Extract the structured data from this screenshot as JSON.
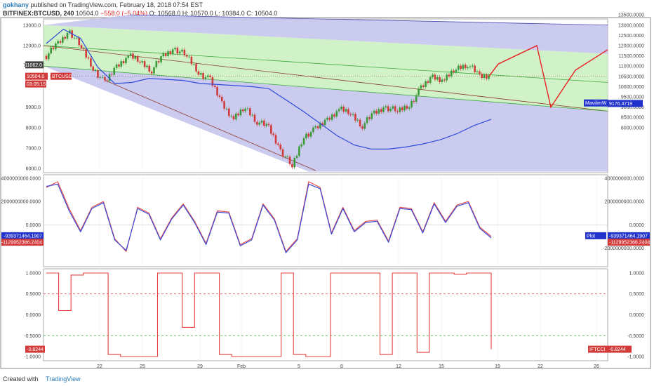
{
  "header": {
    "user": "gokhany",
    "published": "published on TradingView.com, February 18, 2018 07:54 EST",
    "symbol": "BITFINEX:BTCUSD, 240",
    "last": "10504.0",
    "change": "−558.0 (−5.04%)",
    "ohlc": "O: 10568.0  H: 10570.0  L: 10384.0  C: 10504.0"
  },
  "footer": {
    "created_with": "Created with",
    "brand": "TradingView"
  },
  "colors": {
    "green_band": "#c9efc0",
    "blue_band": "#c2c2ec",
    "candle_up": "#3a9a3a",
    "candle_down": "#d23a3a",
    "ma": "#2e4cd8",
    "pitch_median": "#8b3a2a",
    "projection": "#e82020",
    "osc_blue": "#3a4ad8",
    "osc_red": "#e85050",
    "ifti": "#e84040"
  },
  "chart_data": [
    {
      "type": "line",
      "panel": "price",
      "yticks_left": [
        "13000.0",
        "12000.0",
        "11062.0",
        "9000.0",
        "8000.0",
        "7000.0",
        "6000.0"
      ],
      "yticks_right": [
        "13500.0000",
        "13000.0000",
        "12500.0000",
        "12000.0000",
        "11500.0000",
        "11000.0000",
        "10500.0000",
        "10000.0000",
        "9500.0000",
        "9000.0000",
        "8500.0000",
        "8000.0000"
      ],
      "ylim": [
        5800,
        13300
      ],
      "price_tag": "11062.0",
      "last_tag": "10504.0",
      "last_label": "BTCUSD",
      "countdown": "03:05:15",
      "ma_label": "MavilimW",
      "ma_value": "9176.4719",
      "series": [
        {
          "values": [
            11500,
            12100,
            12700,
            11900,
            10900,
            10150,
            11000,
            11500,
            11250,
            10800,
            11500,
            11850,
            11500,
            10700,
            10300,
            9200,
            8400,
            9000,
            8300,
            8000,
            6900,
            6100,
            7600,
            7900,
            8400,
            8900,
            8700,
            8100,
            8700,
            9000,
            8800,
            9100,
            9900,
            10500,
            10300,
            10900,
            11100,
            10504
          ]
        },
        {
          "values": [
            12100,
            12800,
            12350,
            10950,
            10150,
            10200,
            10400,
            10350,
            10300,
            10150,
            10100,
            10050,
            10000,
            9900,
            9350,
            8800,
            8200,
            7600,
            7150,
            6950,
            6950,
            7050,
            7200,
            7400,
            7700,
            8100,
            8400
          ]
        },
        {
          "values": [
            10504,
            11100,
            12000,
            9000,
            10800,
            11800
          ]
        }
      ]
    },
    {
      "type": "line",
      "panel": "oscillator",
      "yticks_left": [
        "4000000000.0000",
        "2000000000.0000",
        "0.0000"
      ],
      "yticks_right": [
        "4000000000.0000",
        "2000000000.0000",
        "0.0000",
        "-2000000000.0000"
      ],
      "ylim": [
        -3600000000,
        4300000000
      ],
      "tag_blue": "-939371464.1907",
      "tag_red": "-1129952366.2404",
      "plot_label": "Plot",
      "series": [
        {
          "values": [
            3200,
            3700,
            1400,
            -500,
            1500,
            2000,
            -1200,
            -2300,
            1500,
            1000,
            -1200,
            600,
            1800,
            300,
            -1600,
            1200,
            1100,
            -1700,
            -1200,
            1800,
            500,
            -2300,
            -1200,
            3700,
            3200,
            -700,
            1500,
            -500,
            300,
            400,
            -1400,
            1500,
            1400,
            -600,
            1900,
            300,
            1700,
            2000,
            -200,
            -1000
          ]
        },
        {
          "values": [
            3300,
            3500,
            1200,
            -600,
            1400,
            1900,
            -1300,
            -2200,
            1400,
            900,
            -1300,
            500,
            1700,
            200,
            -1700,
            1100,
            1000,
            -1800,
            -1300,
            1700,
            400,
            -2400,
            -1300,
            3500,
            3100,
            -800,
            1400,
            -600,
            200,
            300,
            -1500,
            1400,
            1300,
            -700,
            1800,
            200,
            1600,
            1900,
            -300,
            -1130
          ]
        }
      ]
    },
    {
      "type": "line",
      "panel": "ifti",
      "yticks_left": [
        "1.0000",
        "0.5000",
        "0.0000",
        "-0.5000",
        "-1.0000"
      ],
      "yticks_right": [
        "1.0000",
        "0.5000",
        "0.0000",
        "-0.5000",
        "-1.0000"
      ],
      "ylim": [
        -1.1,
        1.1
      ],
      "levels": [
        0.5,
        -0.5
      ],
      "last_tag": "-0.8244",
      "indicator_label": "IFTCCI",
      "series": [
        {
          "values": [
            1.0,
            0.1,
            0.95,
            1.0,
            1.0,
            -0.95,
            -1.0,
            -1.0,
            -1.0,
            1.0,
            1.0,
            -0.3,
            1.0,
            1.0,
            -0.95,
            -1.0,
            -1.0,
            -1.0,
            -1.0,
            1.0,
            -0.95,
            -1.0,
            -1.0,
            1.0,
            1.0,
            1.0,
            1.0,
            -0.95,
            1.0,
            1.0,
            -0.9,
            1.0,
            1.0,
            0.97,
            1.0,
            1.0,
            -0.8244
          ]
        }
      ]
    }
  ],
  "x_axis": {
    "labels": [
      "22",
      "25",
      "29",
      "Feb",
      "5",
      "8",
      "12",
      "15",
      "19",
      "22",
      "26"
    ]
  }
}
